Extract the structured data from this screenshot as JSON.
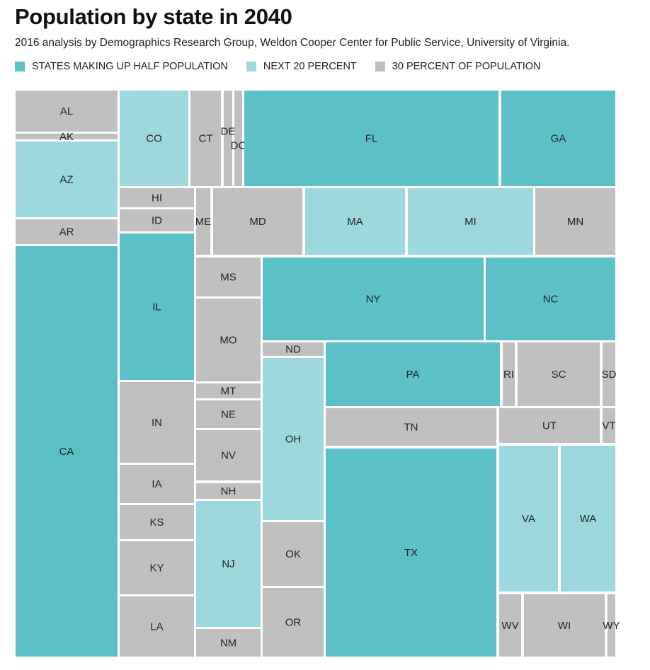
{
  "chart_data": {
    "type": "treemap",
    "title": "Population by state in 2040",
    "subtitle": "2016 analysis by Demographics Research Group, Weldon Cooper Center for Public Service, University of Virginia.",
    "legend": [
      {
        "key": "half",
        "label": "STATES MAKING UP HALF POPULATION",
        "color": "#5bc0c8"
      },
      {
        "key": "next20",
        "label": "NEXT 20 PERCENT",
        "color": "#9dd8de"
      },
      {
        "key": "rest30",
        "label": "30 PERCENT OF POPULATION",
        "color": "#c0c0c0"
      }
    ],
    "states": [
      {
        "state": "AL",
        "group": "rest30"
      },
      {
        "state": "AK",
        "group": "rest30"
      },
      {
        "state": "AZ",
        "group": "next20"
      },
      {
        "state": "AR",
        "group": "rest30"
      },
      {
        "state": "CA",
        "group": "half"
      },
      {
        "state": "CO",
        "group": "next20"
      },
      {
        "state": "CT",
        "group": "rest30"
      },
      {
        "state": "DE",
        "group": "rest30"
      },
      {
        "state": "DC",
        "group": "rest30"
      },
      {
        "state": "FL",
        "group": "half"
      },
      {
        "state": "GA",
        "group": "half"
      },
      {
        "state": "HI",
        "group": "rest30"
      },
      {
        "state": "ID",
        "group": "rest30"
      },
      {
        "state": "IL",
        "group": "half"
      },
      {
        "state": "IN",
        "group": "rest30"
      },
      {
        "state": "IA",
        "group": "rest30"
      },
      {
        "state": "KS",
        "group": "rest30"
      },
      {
        "state": "KY",
        "group": "rest30"
      },
      {
        "state": "LA",
        "group": "rest30"
      },
      {
        "state": "ME",
        "group": "rest30"
      },
      {
        "state": "MD",
        "group": "rest30"
      },
      {
        "state": "MA",
        "group": "next20"
      },
      {
        "state": "MI",
        "group": "next20"
      },
      {
        "state": "MN",
        "group": "rest30"
      },
      {
        "state": "MS",
        "group": "rest30"
      },
      {
        "state": "MO",
        "group": "rest30"
      },
      {
        "state": "MT",
        "group": "rest30"
      },
      {
        "state": "NE",
        "group": "rest30"
      },
      {
        "state": "NV",
        "group": "rest30"
      },
      {
        "state": "NH",
        "group": "rest30"
      },
      {
        "state": "NJ",
        "group": "next20"
      },
      {
        "state": "NM",
        "group": "rest30"
      },
      {
        "state": "NY",
        "group": "half"
      },
      {
        "state": "NC",
        "group": "half"
      },
      {
        "state": "ND",
        "group": "rest30"
      },
      {
        "state": "OH",
        "group": "next20"
      },
      {
        "state": "OK",
        "group": "rest30"
      },
      {
        "state": "OR",
        "group": "rest30"
      },
      {
        "state": "PA",
        "group": "half"
      },
      {
        "state": "RI",
        "group": "rest30"
      },
      {
        "state": "SC",
        "group": "rest30"
      },
      {
        "state": "SD",
        "group": "rest30"
      },
      {
        "state": "TN",
        "group": "rest30"
      },
      {
        "state": "TX",
        "group": "half"
      },
      {
        "state": "UT",
        "group": "rest30"
      },
      {
        "state": "VT",
        "group": "rest30"
      },
      {
        "state": "VA",
        "group": "next20"
      },
      {
        "state": "WA",
        "group": "next20"
      },
      {
        "state": "WV",
        "group": "rest30"
      },
      {
        "state": "WI",
        "group": "rest30"
      },
      {
        "state": "WY",
        "group": "rest30"
      }
    ]
  }
}
